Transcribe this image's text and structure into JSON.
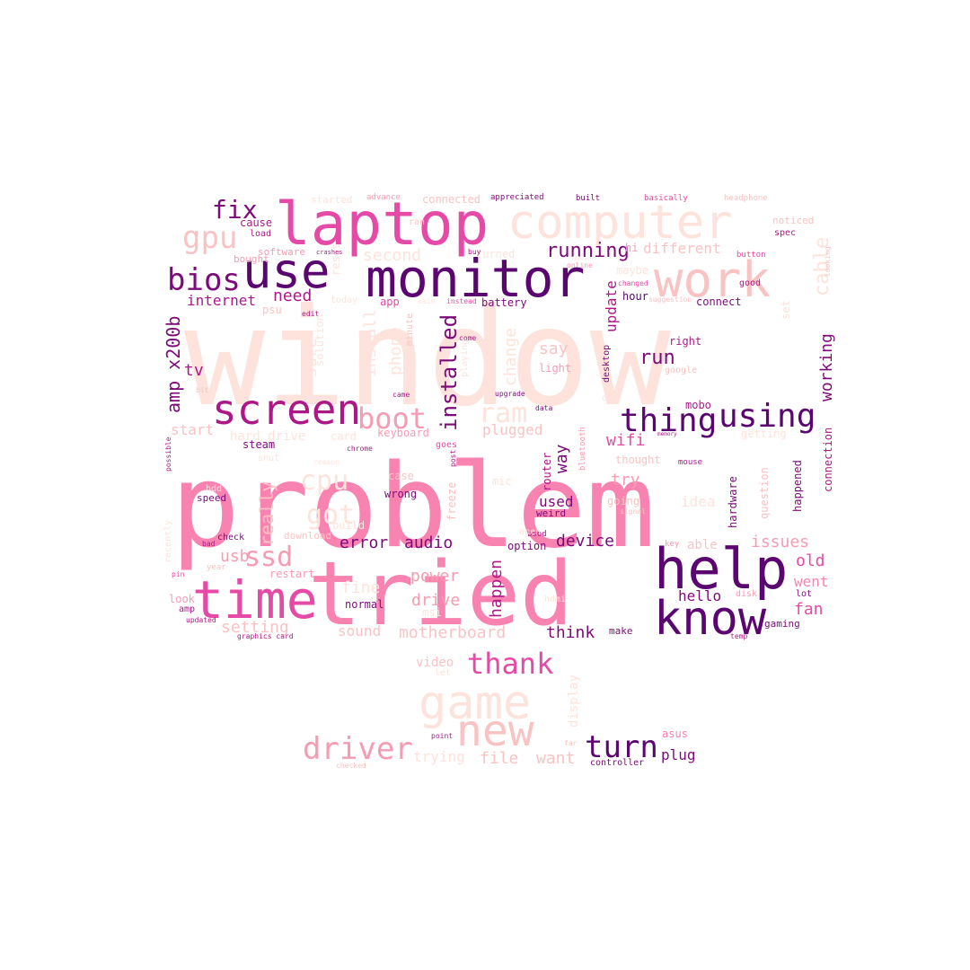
{
  "palette": {
    "c1": "#fde3db",
    "c2": "#f9c3c3",
    "c3": "#f69cb2",
    "c4": "#f882b0",
    "c5": "#e54ba6",
    "c6": "#ad1889",
    "c7": "#7d0a79",
    "c8": "#5a0570"
  },
  "words": [
    {
      "t": "window",
      "c": "c1"
    },
    {
      "t": "problem",
      "c": "c4"
    },
    {
      "t": "tried",
      "c": "c4"
    },
    {
      "t": "computer",
      "c": "c1"
    },
    {
      "t": "laptop",
      "c": "c5"
    },
    {
      "t": "monitor",
      "c": "c8"
    },
    {
      "t": "use",
      "c": "c8"
    },
    {
      "t": "work",
      "c": "c2"
    },
    {
      "t": "help",
      "c": "c8"
    },
    {
      "t": "know",
      "c": "c8"
    },
    {
      "t": "time",
      "c": "c5"
    },
    {
      "t": "game",
      "c": "c1"
    },
    {
      "t": "new",
      "c": "c2"
    },
    {
      "t": "screen",
      "c": "c6"
    },
    {
      "t": "thing",
      "c": "c8"
    },
    {
      "t": "using",
      "c": "c8"
    },
    {
      "t": "boot",
      "c": "c3"
    },
    {
      "t": "ram",
      "c": "c1"
    },
    {
      "t": "fix",
      "c": "c7"
    },
    {
      "t": "gpu",
      "c": "c2"
    },
    {
      "t": "bios",
      "c": "c7"
    },
    {
      "t": "driver",
      "c": "c3"
    },
    {
      "t": "turn",
      "c": "c8"
    },
    {
      "t": "thank",
      "c": "c5"
    },
    {
      "t": "cpu",
      "c": "c1"
    },
    {
      "t": "got",
      "c": "c1"
    },
    {
      "t": "ssd",
      "c": "c3"
    },
    {
      "t": "installed",
      "c": "c7"
    },
    {
      "t": "running",
      "c": "c7"
    },
    {
      "t": "cable",
      "c": "c1"
    },
    {
      "t": "second",
      "c": "c1"
    },
    {
      "t": "need",
      "c": "c6"
    },
    {
      "t": "internet",
      "c": "c6"
    },
    {
      "t": "amp x200b",
      "c": "c7"
    },
    {
      "t": "tv",
      "c": "c6"
    },
    {
      "t": "sure",
      "c": "c1"
    },
    {
      "t": "install",
      "c": "c1"
    },
    {
      "t": "phone",
      "c": "c1"
    },
    {
      "t": "change",
      "c": "c1"
    },
    {
      "t": "update",
      "c": "c6"
    },
    {
      "t": "say",
      "c": "c2"
    },
    {
      "t": "run",
      "c": "c7"
    },
    {
      "t": "working",
      "c": "c7"
    },
    {
      "t": "different",
      "c": "c2"
    },
    {
      "t": "wifi",
      "c": "c5"
    },
    {
      "t": "plugged",
      "c": "c2"
    },
    {
      "t": "way",
      "c": "c7"
    },
    {
      "t": "try",
      "c": "c3"
    },
    {
      "t": "really",
      "c": "c2"
    },
    {
      "t": "error",
      "c": "c7"
    },
    {
      "t": "audio",
      "c": "c7"
    },
    {
      "t": "device",
      "c": "c7"
    },
    {
      "t": "usb",
      "c": "c3"
    },
    {
      "t": "power",
      "c": "c3"
    },
    {
      "t": "fine",
      "c": "c1"
    },
    {
      "t": "drive",
      "c": "c3"
    },
    {
      "t": "happen",
      "c": "c6"
    },
    {
      "t": "issues",
      "c": "c3"
    },
    {
      "t": "old",
      "c": "c5"
    },
    {
      "t": "fan",
      "c": "c5"
    },
    {
      "t": "went",
      "c": "c4"
    },
    {
      "t": "setting",
      "c": "c2"
    },
    {
      "t": "motherboard",
      "c": "c2"
    },
    {
      "t": "sound",
      "c": "c2"
    },
    {
      "t": "think",
      "c": "c7"
    },
    {
      "t": "hello",
      "c": "c7"
    },
    {
      "t": "file",
      "c": "c2"
    },
    {
      "t": "want",
      "c": "c2"
    },
    {
      "t": "plug",
      "c": "c7"
    },
    {
      "t": "trying",
      "c": "c1"
    },
    {
      "t": "display",
      "c": "c1"
    },
    {
      "t": "video",
      "c": "c2"
    },
    {
      "t": "hard drive",
      "c": "c1"
    },
    {
      "t": "start",
      "c": "c2"
    },
    {
      "t": "used",
      "c": "c7"
    },
    {
      "t": "idea",
      "c": "c1"
    },
    {
      "t": "hardware",
      "c": "c7"
    },
    {
      "t": "happened",
      "c": "c7"
    },
    {
      "t": "question",
      "c": "c2"
    },
    {
      "t": "connection",
      "c": "c6"
    },
    {
      "t": "getting",
      "c": "c1"
    },
    {
      "t": "able",
      "c": "c2"
    },
    {
      "t": "mobo",
      "c": "c6"
    },
    {
      "t": "right",
      "c": "c6"
    },
    {
      "t": "set",
      "c": "c1"
    },
    {
      "t": "cause",
      "c": "c6"
    },
    {
      "t": "load",
      "c": "c6"
    },
    {
      "t": "software",
      "c": "c3"
    },
    {
      "t": "bought",
      "c": "c3"
    },
    {
      "t": "psu",
      "c": "c2"
    },
    {
      "t": "started",
      "c": "c1"
    },
    {
      "t": "advance",
      "c": "c3"
    },
    {
      "t": "connected",
      "c": "c2"
    },
    {
      "t": "appreciated",
      "c": "c7"
    },
    {
      "t": "built",
      "c": "c7"
    },
    {
      "t": "basically",
      "c": "c5"
    },
    {
      "t": "headphone",
      "c": "c2"
    },
    {
      "t": "noticed",
      "c": "c2"
    },
    {
      "t": "spec",
      "c": "c6"
    },
    {
      "t": "button",
      "c": "c5"
    },
    {
      "t": "hi",
      "c": "c3"
    },
    {
      "t": "good",
      "c": "c6"
    },
    {
      "t": "maybe",
      "c": "c1"
    },
    {
      "t": "changed",
      "c": "c5"
    },
    {
      "t": "online",
      "c": "c3"
    },
    {
      "t": "hour",
      "c": "c8"
    },
    {
      "t": "connect",
      "c": "c7"
    },
    {
      "t": "suggestion",
      "c": "c2"
    },
    {
      "t": "turned",
      "c": "c1"
    },
    {
      "t": "battery",
      "c": "c7"
    },
    {
      "t": "app",
      "c": "c5"
    },
    {
      "t": "today",
      "c": "c1"
    },
    {
      "t": "edit",
      "c": "c6"
    },
    {
      "t": "minute",
      "c": "c2"
    },
    {
      "t": "instead",
      "c": "c5"
    },
    {
      "t": "said",
      "c": "c1"
    },
    {
      "t": "ran",
      "c": "c2"
    },
    {
      "t": "buy",
      "c": "c6"
    },
    {
      "t": "come",
      "c": "c6"
    },
    {
      "t": "solution",
      "c": "c1"
    },
    {
      "t": "reset",
      "c": "c1"
    },
    {
      "t": "desktop",
      "c": "c7"
    },
    {
      "t": "light",
      "c": "c3"
    },
    {
      "t": "google",
      "c": "c2"
    },
    {
      "t": "came",
      "c": "c6"
    },
    {
      "t": "upgrade",
      "c": "c7"
    },
    {
      "t": "data",
      "c": "c7"
    },
    {
      "t": "day",
      "c": "c1"
    },
    {
      "t": "keyboard",
      "c": "c3"
    },
    {
      "t": "steam",
      "c": "c7"
    },
    {
      "t": "chrome",
      "c": "c6"
    },
    {
      "t": "goes",
      "c": "c5"
    },
    {
      "t": "post",
      "c": "c6"
    },
    {
      "t": "thought",
      "c": "c2"
    },
    {
      "t": "bluetooth",
      "c": "c3"
    },
    {
      "t": "router",
      "c": "c6"
    },
    {
      "t": "memory",
      "c": "c6"
    },
    {
      "t": "mouse",
      "c": "c6"
    },
    {
      "t": "case",
      "c": "c2"
    },
    {
      "t": "wrong",
      "c": "c7"
    },
    {
      "t": "mic",
      "c": "c1"
    },
    {
      "t": "freeze",
      "c": "c2"
    },
    {
      "t": "weird",
      "c": "c7"
    },
    {
      "t": "speed",
      "c": "c7"
    },
    {
      "t": "hdd",
      "c": "c1"
    },
    {
      "t": "shut",
      "c": "c1"
    },
    {
      "t": "reason",
      "c": "c1"
    },
    {
      "t": "build",
      "c": "c1"
    },
    {
      "t": "check",
      "c": "c7"
    },
    {
      "t": "download",
      "c": "c2"
    },
    {
      "t": "restart",
      "c": "c3"
    },
    {
      "t": "option",
      "c": "c7"
    },
    {
      "t": "bsod",
      "c": "c6"
    },
    {
      "t": "year",
      "c": "c2"
    },
    {
      "t": "key",
      "c": "c3"
    },
    {
      "t": "disk",
      "c": "c3"
    },
    {
      "t": "lot",
      "c": "c7"
    },
    {
      "t": "gaming",
      "c": "c7"
    },
    {
      "t": "normal",
      "c": "c7"
    },
    {
      "t": "msi",
      "c": "c1"
    },
    {
      "t": "hdmi",
      "c": "c1"
    },
    {
      "t": "make",
      "c": "c7"
    },
    {
      "t": "temp",
      "c": "c6"
    },
    {
      "t": "look",
      "c": "c3"
    },
    {
      "t": "amp",
      "c": "c6"
    },
    {
      "t": "updated",
      "c": "c6"
    },
    {
      "t": "graphics card",
      "c": "c6"
    },
    {
      "t": "possible",
      "c": "c6"
    },
    {
      "t": "pin",
      "c": "c5"
    },
    {
      "t": "bad",
      "c": "c6"
    },
    {
      "t": "recently",
      "c": "c1"
    },
    {
      "t": "crashes",
      "c": "c6"
    },
    {
      "t": "folder",
      "c": "c1"
    },
    {
      "t": "looking",
      "c": "c2"
    },
    {
      "t": "asus",
      "c": "c4"
    },
    {
      "t": "controller",
      "c": "c7"
    },
    {
      "t": "point",
      "c": "c6"
    },
    {
      "t": "far",
      "c": "c2"
    },
    {
      "t": "let",
      "c": "c1"
    },
    {
      "t": "checked",
      "c": "c2"
    },
    {
      "t": "card",
      "c": "c1"
    },
    {
      "t": "signal",
      "c": "c2"
    },
    {
      "t": "playing",
      "c": "c1"
    },
    {
      "t": "going",
      "c": "c2"
    },
    {
      "t": "open",
      "c": "c1"
    },
    {
      "t": "bit",
      "c": "c2"
    }
  ]
}
